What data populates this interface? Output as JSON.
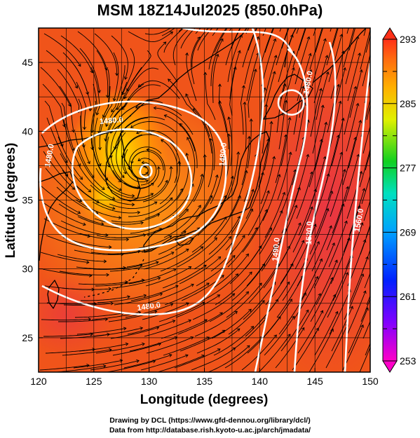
{
  "title": "MSM 18Z14Jul2025 (850.0hPa)",
  "x_axis": {
    "label": "Longitude (degrees)",
    "range": [
      120,
      150
    ],
    "ticks": [
      "120",
      "125",
      "130",
      "135",
      "140",
      "145",
      "150"
    ]
  },
  "y_axis": {
    "label": "Latitude  (degrees)",
    "range": [
      22.5,
      47.5
    ],
    "ticks": [
      "25",
      "30",
      "35",
      "40",
      "45"
    ]
  },
  "colorbar": {
    "ticks": [
      "253",
      "261",
      "269",
      "277",
      "285",
      "293"
    ],
    "range": [
      253,
      293
    ]
  },
  "contour_labels": [
    {
      "text": "1480.0",
      "lon": 121.2,
      "lat": 38.2,
      "angle": -80
    },
    {
      "text": "1480.0",
      "lon": 126.6,
      "lat": 40.6,
      "angle": -5
    },
    {
      "text": "1480.0",
      "lon": 136.9,
      "lat": 38.3,
      "angle": -85
    },
    {
      "text": "1480.0",
      "lon": 144.6,
      "lat": 43.5,
      "angle": -80
    },
    {
      "text": "1480.0",
      "lon": 130.0,
      "lat": 27.1,
      "angle": -8
    },
    {
      "text": "1490.0",
      "lon": 141.7,
      "lat": 31.4,
      "angle": -85
    },
    {
      "text": "1520.0",
      "lon": 144.7,
      "lat": 32.6,
      "angle": -88
    },
    {
      "text": "1560.0",
      "lon": 149.2,
      "lat": 33.5,
      "angle": -80
    }
  ],
  "credits": [
    "Drawing by DCL (https://www.gfd-dennou.org/library/dcl/)",
    "Data from http://database.rish.kyoto-u.ac.jp/arch/jmadata/"
  ],
  "colors": {
    "background_field": "#f0541a",
    "warm_center": "#ffd000",
    "contour": "#ffffff",
    "streamline": "#000000",
    "coastline": "#000000"
  }
}
